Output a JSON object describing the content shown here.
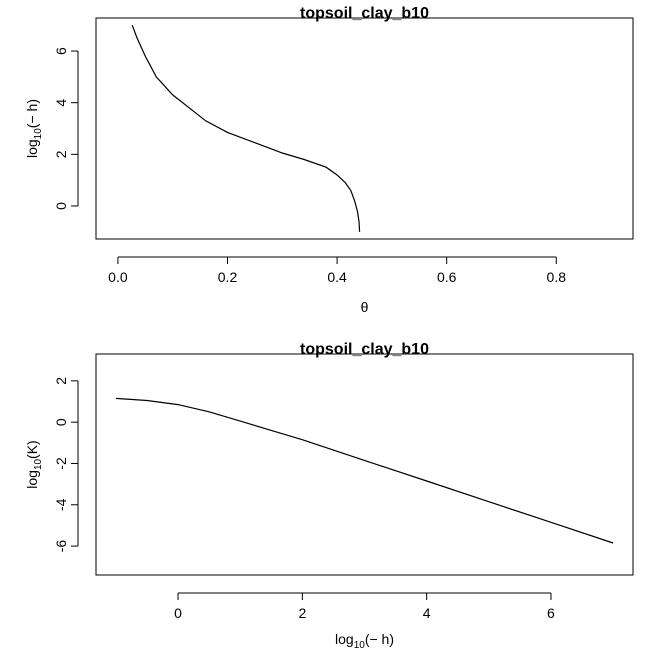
{
  "chart_data": [
    {
      "type": "line",
      "title": "topsoil_clay_b10",
      "xlabel": "θ",
      "ylabel": {
        "prefix": "log",
        "sub": "10",
        "suffix": "(− h)"
      },
      "xlim": [
        -0.04,
        0.94
      ],
      "ylim": [
        -1.28,
        7.28
      ],
      "xticks": [
        0.0,
        0.2,
        0.4,
        0.6,
        0.8
      ],
      "xtick_labels": [
        "0.0",
        "0.2",
        "0.4",
        "0.6",
        "0.8"
      ],
      "yticks": [
        0,
        2,
        4,
        6
      ],
      "ytick_labels": [
        "0",
        "2",
        "4",
        "6"
      ],
      "grid": false,
      "series": [
        {
          "x": [
            0.026,
            0.035,
            0.05,
            0.07,
            0.1,
            0.13,
            0.16,
            0.2,
            0.25,
            0.3,
            0.34,
            0.38,
            0.4,
            0.415,
            0.425,
            0.432,
            0.437,
            0.44,
            0.441
          ],
          "y": [
            7.0,
            6.5,
            5.8,
            5.0,
            4.3,
            3.8,
            3.3,
            2.85,
            2.45,
            2.05,
            1.8,
            1.5,
            1.2,
            0.9,
            0.6,
            0.2,
            -0.2,
            -0.6,
            -1.0
          ]
        }
      ]
    },
    {
      "type": "line",
      "title": "topsoil_clay_b10",
      "xlabel": {
        "prefix": "log",
        "sub": "10",
        "suffix": "(− h)"
      },
      "ylabel": {
        "prefix": "log",
        "sub": "10",
        "suffix": "(K)"
      },
      "xlim": [
        -1.32,
        7.32
      ],
      "ylim": [
        -7.4,
        3.3
      ],
      "xticks": [
        0,
        2,
        4,
        6
      ],
      "xtick_labels": [
        "0",
        "2",
        "4",
        "6"
      ],
      "yticks": [
        2,
        0,
        -2,
        -4,
        -6
      ],
      "ytick_labels": [
        "2",
        "0",
        "-2",
        "-4",
        "-6"
      ],
      "grid": false,
      "series": [
        {
          "x": [
            -1.0,
            -0.5,
            0.0,
            0.5,
            1.0,
            1.5,
            2.0,
            3.0,
            4.0,
            5.0,
            6.0,
            7.0
          ],
          "y": [
            1.15,
            1.05,
            0.85,
            0.5,
            0.05,
            -0.4,
            -0.85,
            -1.85,
            -2.85,
            -3.85,
            -4.85,
            -5.85
          ]
        }
      ]
    }
  ]
}
